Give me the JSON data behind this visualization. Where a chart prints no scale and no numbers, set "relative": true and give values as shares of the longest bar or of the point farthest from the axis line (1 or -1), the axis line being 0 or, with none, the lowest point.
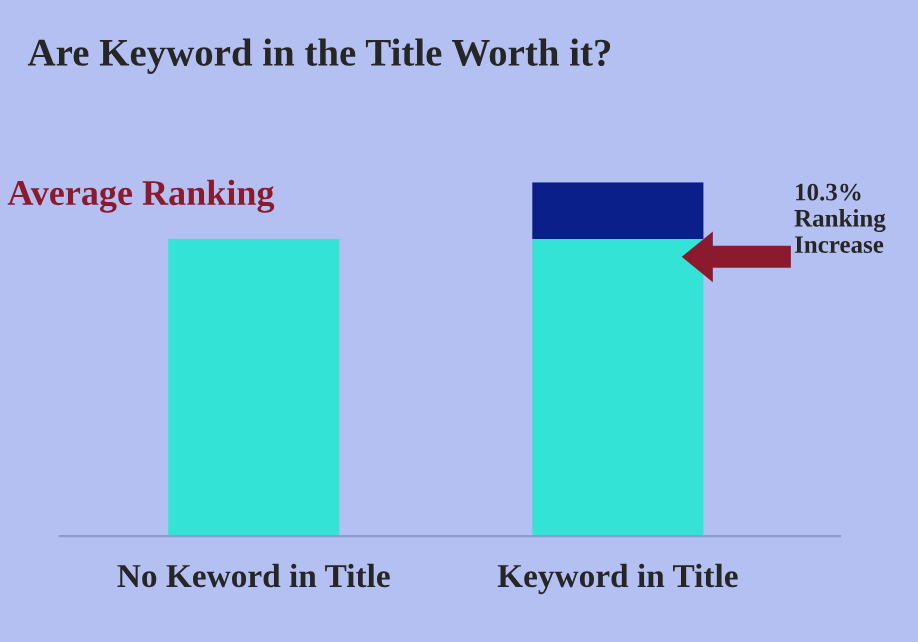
{
  "chart_data": {
    "type": "bar",
    "title": "Are Keyword in the Title Worth it?",
    "ylabel": "Average Ranking",
    "categories": [
      "No Keword in Title",
      "Keyword in Title"
    ],
    "relative": true,
    "stacked": true,
    "legend": false,
    "grid": false,
    "series": [
      {
        "color": "#33e3d6",
        "values": [
          0.84,
          0.84
        ]
      },
      {
        "color": "#0a1f8a",
        "values": [
          null,
          0.16
        ]
      }
    ],
    "annotations": [
      "10.3%\nRanking\nIncrease"
    ]
  }
}
